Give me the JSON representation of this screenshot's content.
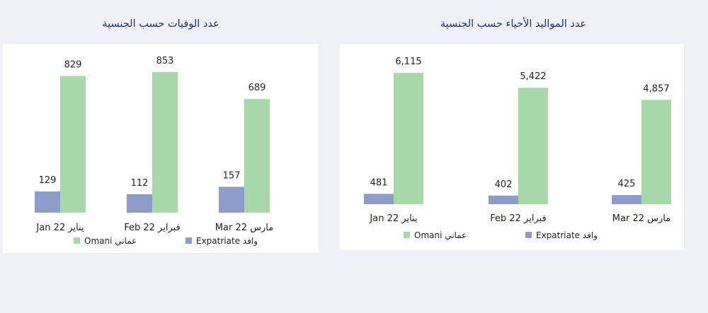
{
  "colors": {
    "omani": "#a6d8a9",
    "expatriate": "#8e9cc9",
    "title": "#1c2f7a"
  },
  "chart_data": [
    {
      "type": "bar",
      "title": "عدد الوفيات حسب الجنسية",
      "categories": [
        "Jan 22 يناير",
        "Feb 22 فبراير",
        "Mar 22 مارس"
      ],
      "series": [
        {
          "name": "Expatriate وافد",
          "values": [
            129,
            112,
            157
          ]
        },
        {
          "name": "Omani عماني",
          "values": [
            829,
            853,
            689
          ]
        }
      ],
      "value_labels": [
        [
          "129",
          "112",
          "157"
        ],
        [
          "829",
          "853",
          "689"
        ]
      ],
      "ylim": [
        0,
        900
      ],
      "grid": false,
      "legend": "bottom"
    },
    {
      "type": "bar",
      "title": "عدد المواليد الأحياء حسب الجنسية",
      "categories": [
        "Jan 22 يناير",
        "Feb 22 فبراير",
        "Mar 22 مارس"
      ],
      "series": [
        {
          "name": "Expatriate وافد",
          "values": [
            481,
            402,
            425
          ]
        },
        {
          "name": "Omani عماني",
          "values": [
            6115,
            5422,
            4857
          ]
        }
      ],
      "value_labels": [
        [
          "481",
          "402",
          "425"
        ],
        [
          "6,115",
          "5,422",
          "4,857"
        ]
      ],
      "ylim": [
        0,
        6450
      ],
      "grid": false,
      "legend": "bottom"
    }
  ]
}
